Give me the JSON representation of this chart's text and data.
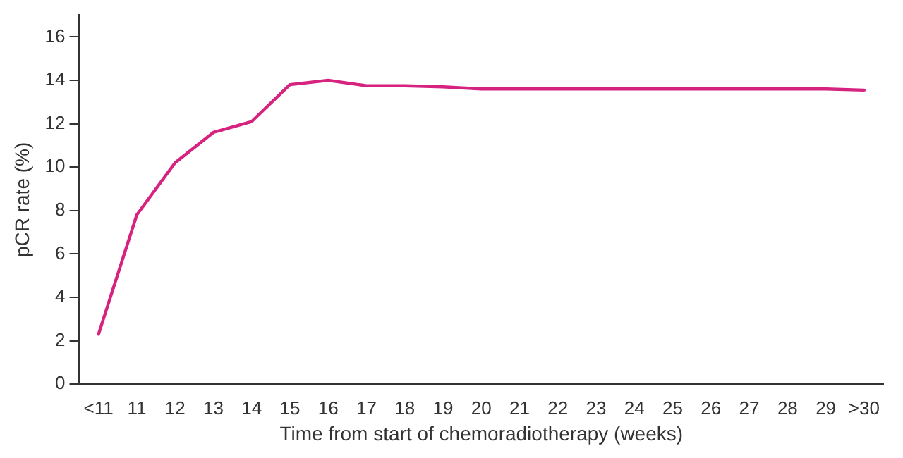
{
  "chart_data": {
    "type": "line",
    "xlabel": "Time from start of chemoradiotherapy (weeks)",
    "ylabel": "pCR rate (%)",
    "categories": [
      "<11",
      "11",
      "12",
      "13",
      "14",
      "15",
      "16",
      "17",
      "18",
      "19",
      "20",
      "21",
      "22",
      "23",
      "24",
      "25",
      "26",
      "27",
      "28",
      "29",
      ">30"
    ],
    "series": [
      {
        "color": "#d6237f",
        "values": [
          2.3,
          7.8,
          10.2,
          11.6,
          12.1,
          13.8,
          14.0,
          13.75,
          13.75,
          13.7,
          13.6,
          13.6,
          13.6,
          13.6,
          13.6,
          13.6,
          13.6,
          13.6,
          13.6,
          13.6,
          13.55
        ]
      }
    ],
    "ylim": [
      0,
      17
    ],
    "yticks": [
      0,
      2,
      4,
      6,
      8,
      10,
      12,
      14,
      16
    ],
    "grid": false,
    "legend": false,
    "marker": "none",
    "line_style": "solid"
  }
}
